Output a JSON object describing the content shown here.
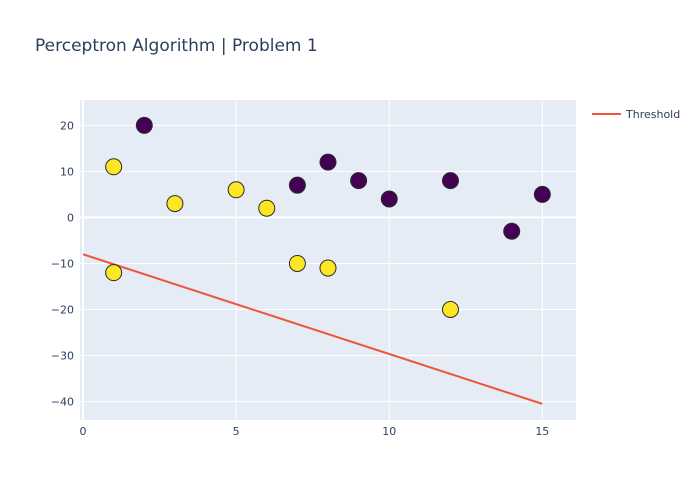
{
  "chart_data": {
    "type": "scatter",
    "title": "Perceptron Algorithm | Problem 1",
    "xlabel": "",
    "ylabel": "",
    "xlim": [
      -0.1,
      16.1
    ],
    "ylim": [
      -44,
      25.5
    ],
    "x_ticks": [
      0,
      5,
      10,
      15
    ],
    "y_ticks": [
      20,
      10,
      0,
      -10,
      -20,
      -30,
      -40
    ],
    "x_tick_labels": [
      "0",
      "5",
      "10",
      "15"
    ],
    "y_tick_labels": [
      "20",
      "10",
      "0",
      "−10",
      "−20",
      "−30",
      "−40"
    ],
    "grid": true,
    "legend": {
      "placement": "top-right",
      "entries": [
        "Threshold"
      ]
    },
    "series": [
      {
        "type": "markers",
        "points": [
          {
            "x": 1,
            "y": 11,
            "class": 1
          },
          {
            "x": 3,
            "y": 3,
            "class": 1
          },
          {
            "x": 5,
            "y": 6,
            "class": 1
          },
          {
            "x": 6,
            "y": 2,
            "class": 1
          },
          {
            "x": 7,
            "y": -10,
            "class": 1
          },
          {
            "x": 8,
            "y": -11,
            "class": 1
          },
          {
            "x": 1,
            "y": -12,
            "class": 1
          },
          {
            "x": 12,
            "y": -20,
            "class": 1
          },
          {
            "x": 2,
            "y": 20,
            "class": 0
          },
          {
            "x": 7,
            "y": 7,
            "class": 0
          },
          {
            "x": 8,
            "y": 12,
            "class": 0
          },
          {
            "x": 9,
            "y": 8,
            "class": 0
          },
          {
            "x": 10,
            "y": 4,
            "class": 0
          },
          {
            "x": 12,
            "y": 8,
            "class": 0
          },
          {
            "x": 14,
            "y": -3,
            "class": 0
          },
          {
            "x": 15,
            "y": 5,
            "class": 0
          }
        ]
      },
      {
        "name": "Threshold",
        "type": "line",
        "x": [
          0,
          15
        ],
        "y": [
          -8,
          -40.5
        ]
      }
    ],
    "colors": {
      "class_0": "#440154",
      "class_1": "#fde725",
      "marker_outline": "#2b2b2b",
      "threshold": "#ef553b",
      "plot_bg": "#e5ecf6",
      "grid": "#ffffff",
      "text": "#2a3f5f"
    }
  }
}
